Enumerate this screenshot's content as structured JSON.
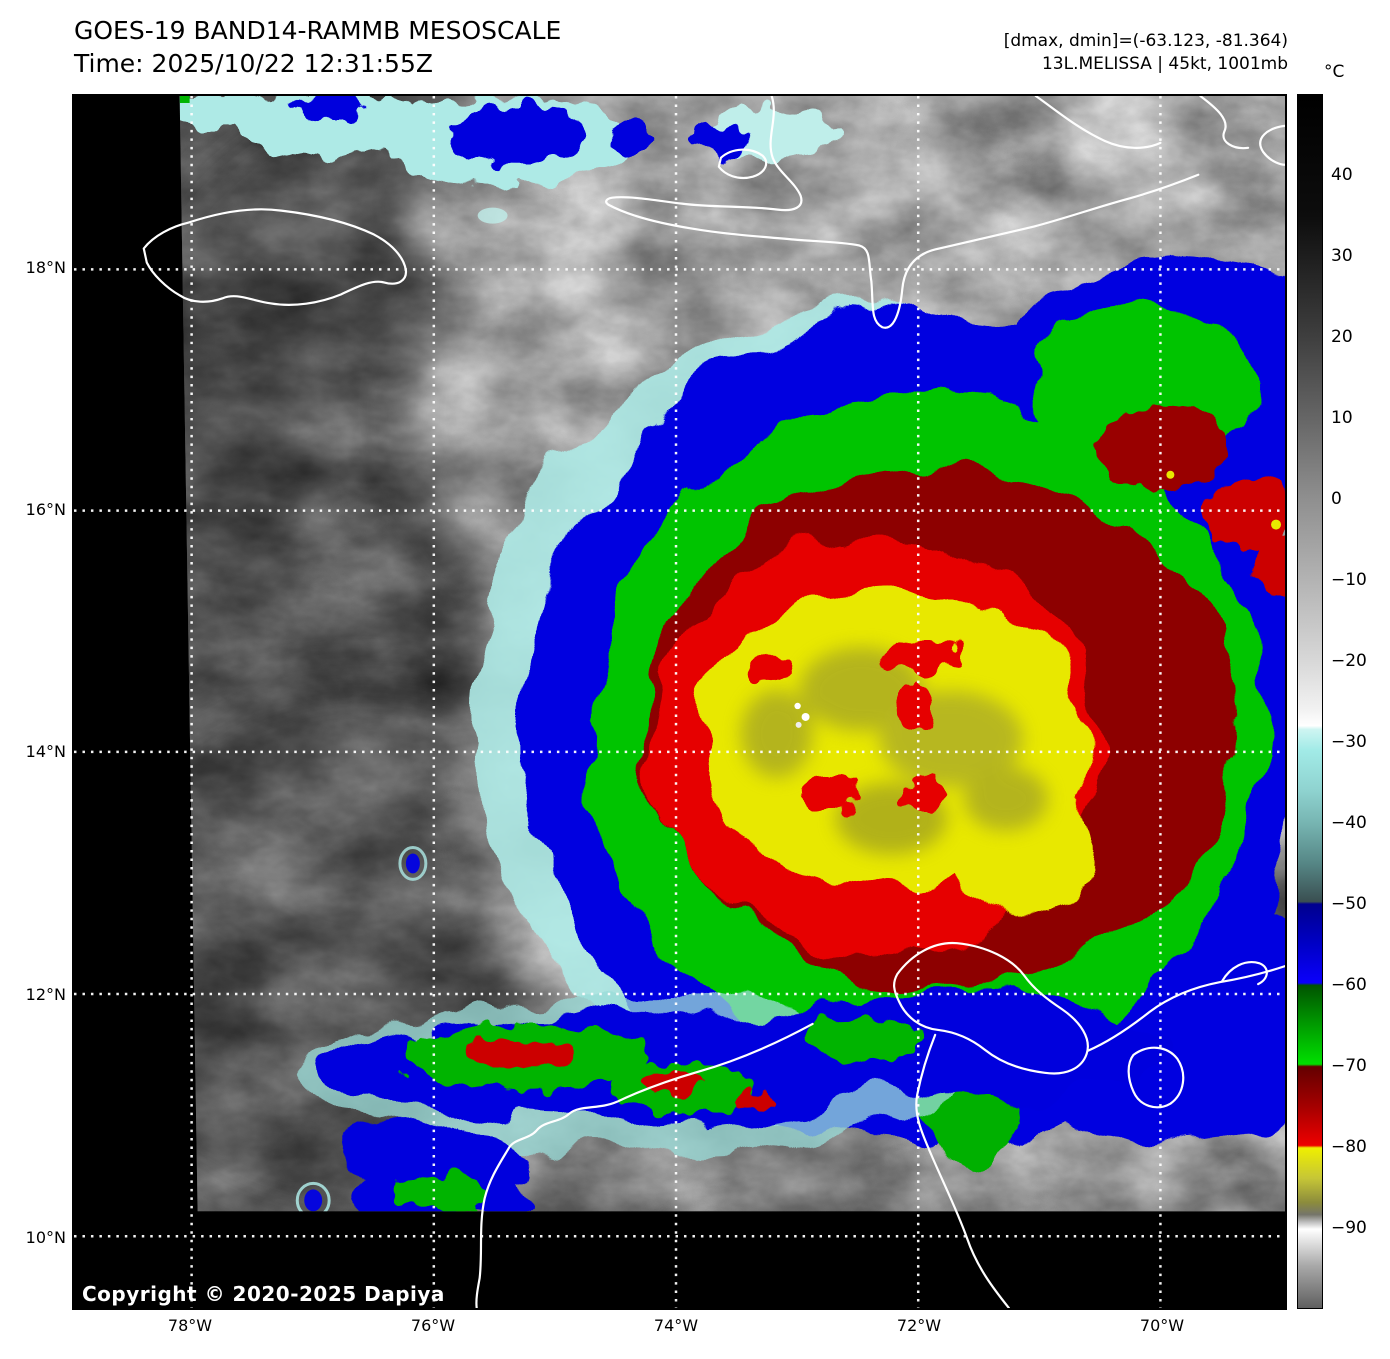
{
  "header": {
    "title": "GOES-19 BAND14-RAMMB MESOSCALE",
    "time": "Time: 2025/10/22 12:31:55Z",
    "range_line": "[dmax, dmin]=(-63.123, -81.364)",
    "storm_line": "13L.MELISSA | 45kt, 1001mb"
  },
  "map_overlay": {
    "copyright": "Copyright © 2020-2025 Dapiya"
  },
  "axes": {
    "lat_labels": [
      "18°N",
      "16°N",
      "14°N",
      "12°N",
      "10°N"
    ],
    "lon_labels": [
      "78°W",
      "76°W",
      "74°W",
      "72°W",
      "70°W"
    ]
  },
  "colorbar": {
    "unit": "°C",
    "value_range": [
      50,
      -100
    ],
    "ticks": [
      {
        "label": "40",
        "pct": 6.67
      },
      {
        "label": "30",
        "pct": 13.33
      },
      {
        "label": "20",
        "pct": 20.0
      },
      {
        "label": "10",
        "pct": 26.67
      },
      {
        "label": "0",
        "pct": 33.33
      },
      {
        "label": "−10",
        "pct": 40.0
      },
      {
        "label": "−20",
        "pct": 46.67
      },
      {
        "label": "−30",
        "pct": 53.33
      },
      {
        "label": "−40",
        "pct": 60.0
      },
      {
        "label": "−50",
        "pct": 66.67
      },
      {
        "label": "−60",
        "pct": 73.33
      },
      {
        "label": "−70",
        "pct": 80.0
      },
      {
        "label": "−80",
        "pct": 86.67
      },
      {
        "label": "−90",
        "pct": 93.33
      }
    ],
    "gradient_stops": [
      {
        "pct": 0,
        "color": "#000000"
      },
      {
        "pct": 10,
        "color": "#0d0d0d"
      },
      {
        "pct": 20,
        "color": "#3f3f3f"
      },
      {
        "pct": 26.7,
        "color": "#666666"
      },
      {
        "pct": 33.3,
        "color": "#8f8f8f"
      },
      {
        "pct": 40,
        "color": "#b3b3b3"
      },
      {
        "pct": 46.7,
        "color": "#d8d8d8"
      },
      {
        "pct": 50.7,
        "color": "#f2f2f2"
      },
      {
        "pct": 52,
        "color": "#ffffff"
      },
      {
        "pct": 52.3,
        "color": "#cef5f2"
      },
      {
        "pct": 54,
        "color": "#a2ebe7"
      },
      {
        "pct": 57.3,
        "color": "#8fd3d0"
      },
      {
        "pct": 60,
        "color": "#77b5b2"
      },
      {
        "pct": 63.3,
        "color": "#568786"
      },
      {
        "pct": 66.5,
        "color": "#3a4f51"
      },
      {
        "pct": 66.7,
        "color": "#00008e"
      },
      {
        "pct": 70,
        "color": "#0000c6"
      },
      {
        "pct": 73.2,
        "color": "#0b00fb"
      },
      {
        "pct": 73.4,
        "color": "#005400"
      },
      {
        "pct": 76.7,
        "color": "#009c00"
      },
      {
        "pct": 79.9,
        "color": "#00e000"
      },
      {
        "pct": 80.1,
        "color": "#640000"
      },
      {
        "pct": 83.3,
        "color": "#a30000"
      },
      {
        "pct": 86.6,
        "color": "#ee0000"
      },
      {
        "pct": 86.8,
        "color": "#efef00"
      },
      {
        "pct": 89.3,
        "color": "#c6c636"
      },
      {
        "pct": 91.3,
        "color": "#8c8c3c"
      },
      {
        "pct": 92.3,
        "color": "#75756a"
      },
      {
        "pct": 92.9,
        "color": "#bcbcbc"
      },
      {
        "pct": 93.5,
        "color": "#ffffff"
      },
      {
        "pct": 96.5,
        "color": "#a9a9a9"
      },
      {
        "pct": 100,
        "color": "#606060"
      }
    ]
  },
  "palette": {
    "cyan": "#aeeae6",
    "blue": "#0505e0",
    "green": "#00c400",
    "dark_red": "#8d0000",
    "red": "#e60000",
    "yellow": "#e8e800"
  }
}
